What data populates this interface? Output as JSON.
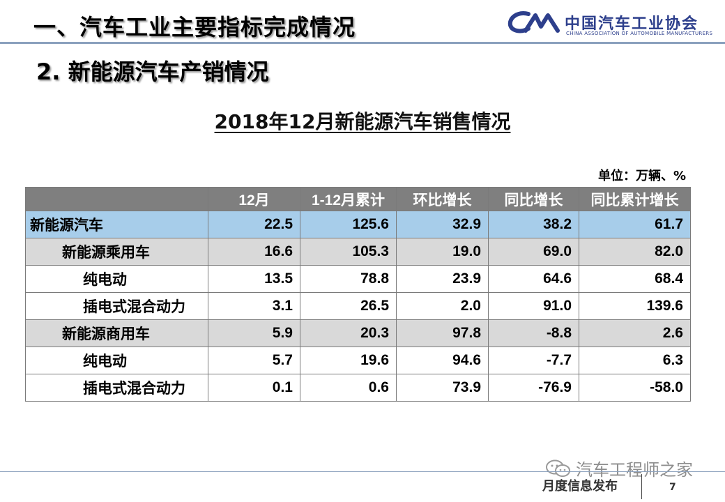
{
  "header": {
    "title": "一、汽车工业主要指标完成情况",
    "logo_cn": "中国汽车工业协会",
    "logo_en": "CHINA ASSOCIATION OF AUTOMOBILE MANUFACTURERS"
  },
  "section_title": "2. 新能源汽车产销情况",
  "table": {
    "title": "2018年12月新能源汽车销售情况",
    "unit": "单位：万辆、%",
    "headers": [
      "",
      "12月",
      "1-12月累计",
      "环比增长",
      "同比增长",
      "同比累计增长"
    ],
    "rows": [
      {
        "label": "新能源汽车",
        "level": 0,
        "values": [
          "22.5",
          "125.6",
          "32.9",
          "38.2",
          "61.7"
        ]
      },
      {
        "label": "新能源乘用车",
        "level": 1,
        "values": [
          "16.6",
          "105.3",
          "19.0",
          "69.0",
          "82.0"
        ]
      },
      {
        "label": "纯电动",
        "level": 2,
        "values": [
          "13.5",
          "78.8",
          "23.9",
          "64.6",
          "68.4"
        ]
      },
      {
        "label": "插电式混合动力",
        "level": 2,
        "values": [
          "3.1",
          "26.5",
          "2.0",
          "91.0",
          "139.6"
        ]
      },
      {
        "label": "新能源商用车",
        "level": 1,
        "values": [
          "5.9",
          "20.3",
          "97.8",
          "-8.8",
          "2.6"
        ]
      },
      {
        "label": "纯电动",
        "level": 2,
        "values": [
          "5.7",
          "19.6",
          "94.6",
          "-7.7",
          "6.3"
        ]
      },
      {
        "label": "插电式混合动力",
        "level": 2,
        "values": [
          "0.1",
          "0.6",
          "73.9",
          "-76.9",
          "-58.0"
        ]
      }
    ]
  },
  "footer": {
    "label": "月度信息发布",
    "page": "7",
    "watermark": "汽车工程师之家"
  },
  "icons": {
    "wechat": "wechat-icon",
    "logo_mark": "caam-logo-icon"
  },
  "colors": {
    "highlight_row": "#a7cdea",
    "subtotal_row": "#d9d9d9",
    "header_row": "#7f7f7f",
    "brand": "#2d3f8c"
  }
}
